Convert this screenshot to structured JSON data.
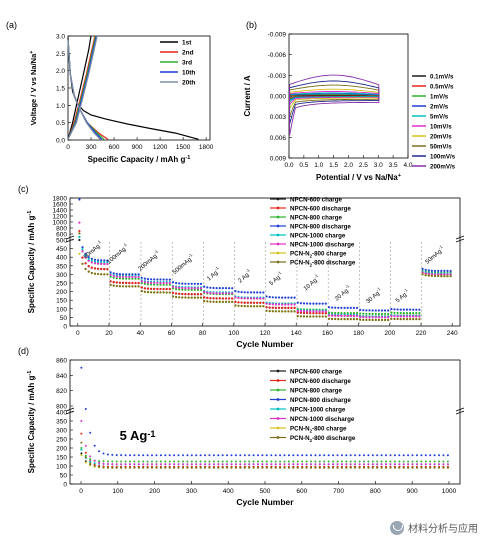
{
  "chart_data": [
    {
      "panel": "(a)",
      "type": "line",
      "xlabel": "Specific Capacity / mAh g",
      "xlabel_sup": "-1",
      "ylabel": "Voltage / V vs Na/Na",
      "ylabel_sup": "+",
      "xlim": [
        0,
        1850
      ],
      "ylim": [
        0,
        3.0
      ],
      "xticks": [
        0,
        300,
        600,
        900,
        1200,
        1500,
        1800
      ],
      "yticks": [
        0.0,
        0.5,
        1.0,
        1.5,
        2.0,
        2.5,
        3.0
      ],
      "legend_position": "top-right",
      "series": [
        {
          "name": "1st",
          "color": "#000000",
          "discharge": {
            "x": [
              0,
              30,
              60,
              120,
              200,
              300,
              500,
              800,
              1100,
              1400,
              1700
            ],
            "y": [
              2.95,
              1.9,
              1.4,
              1.05,
              0.85,
              0.72,
              0.6,
              0.45,
              0.32,
              0.2,
              0.02
            ]
          },
          "charge": {
            "x": [
              0,
              60,
              120,
              200,
              270,
              300
            ],
            "y": [
              0.02,
              0.5,
              1.1,
              1.9,
              2.6,
              3.0
            ]
          }
        },
        {
          "name": "2nd",
          "color": "#e8251f",
          "discharge": {
            "x": [
              0,
              30,
              80,
              150,
              250,
              400,
              520
            ],
            "y": [
              2.9,
              1.9,
              1.3,
              0.9,
              0.5,
              0.2,
              0.02
            ]
          },
          "charge": {
            "x": [
              0,
              80,
              150,
              240,
              310,
              350
            ],
            "y": [
              0.02,
              0.5,
              1.1,
              1.9,
              2.6,
              3.0
            ]
          }
        },
        {
          "name": "3rd",
          "color": "#2db32d",
          "discharge": {
            "x": [
              0,
              30,
              80,
              150,
              250,
              380,
              470
            ],
            "y": [
              2.9,
              1.9,
              1.3,
              0.9,
              0.5,
              0.2,
              0.02
            ]
          },
          "charge": {
            "x": [
              0,
              90,
              160,
              250,
              320,
              360
            ],
            "y": [
              0.02,
              0.5,
              1.1,
              1.9,
              2.6,
              3.0
            ]
          }
        },
        {
          "name": "10th",
          "color": "#1f3fd6",
          "discharge": {
            "x": [
              0,
              30,
              80,
              150,
              250,
              360,
              440
            ],
            "y": [
              2.9,
              1.9,
              1.3,
              0.9,
              0.5,
              0.2,
              0.02
            ]
          },
          "charge": {
            "x": [
              0,
              100,
              170,
              260,
              330,
              370
            ],
            "y": [
              0.02,
              0.5,
              1.1,
              1.9,
              2.6,
              3.0
            ]
          }
        },
        {
          "name": "20th",
          "color": "#7f8fa8",
          "discharge": {
            "x": [
              0,
              30,
              80,
              150,
              240,
              340,
              420
            ],
            "y": [
              2.9,
              1.9,
              1.3,
              0.9,
              0.5,
              0.2,
              0.02
            ]
          },
          "charge": {
            "x": [
              0,
              110,
              180,
              270,
              340,
              380
            ],
            "y": [
              0.02,
              0.5,
              1.1,
              1.9,
              2.6,
              3.0
            ]
          }
        }
      ]
    },
    {
      "panel": "(b)",
      "type": "line",
      "xlabel": "Potential / V vs Na/Na",
      "xlabel_sup": "+",
      "ylabel": "Current / A",
      "xlim": [
        0,
        4.0
      ],
      "ylim": [
        0.009,
        -0.009
      ],
      "xticks": [
        0.0,
        0.5,
        1.0,
        1.5,
        2.0,
        2.5,
        3.0,
        3.5,
        4.0
      ],
      "yticks": [
        0.009,
        0.006,
        0.003,
        0.0,
        -0.003,
        -0.006,
        -0.009
      ],
      "ytick_labels": [
        "0.009",
        "0.006",
        "0.003",
        "0.000",
        "-0.003",
        "-0.006",
        "-0.009"
      ],
      "legend_position": "right",
      "series": [
        {
          "name": "0.1mV/s",
          "color": "#1a1a1a",
          "amp": 0.15
        },
        {
          "name": "0.5mV/s",
          "color": "#e8251f",
          "amp": 0.25
        },
        {
          "name": "1mV/s",
          "color": "#2db32d",
          "amp": 0.35
        },
        {
          "name": "2mV/s",
          "color": "#1f3fd6",
          "amp": 0.5
        },
        {
          "name": "5mV/s",
          "color": "#00c0c0",
          "amp": 0.7
        },
        {
          "name": "10mV/s",
          "color": "#e030c8",
          "amp": 1.0
        },
        {
          "name": "20mV/s",
          "color": "#d4c21a",
          "amp": 1.5
        },
        {
          "name": "50mV/s",
          "color": "#7a6f1a",
          "amp": 2.4
        },
        {
          "name": "100mV/s",
          "color": "#1e2a8a",
          "amp": 3.3
        },
        {
          "name": "200mV/s",
          "color": "#8a2fa8",
          "amp": 4.6
        }
      ]
    },
    {
      "panel": "(c)",
      "type": "scatter",
      "xlabel": "Cycle Number",
      "ylabel": "Specific Capacity / mAh g",
      "ylabel_sup": "-1",
      "xlim": [
        -5,
        245
      ],
      "ylim_lower": [
        0,
        500
      ],
      "ylim_upper": [
        600,
        1800
      ],
      "xticks": [
        0,
        20,
        40,
        60,
        80,
        100,
        120,
        140,
        160,
        180,
        200,
        220,
        240
      ],
      "yticks_lower": [
        0,
        50,
        100,
        150,
        200,
        250,
        300,
        350,
        400,
        450,
        500
      ],
      "yticks_upper": [
        600,
        800,
        1000,
        1200,
        1400,
        1600,
        1800
      ],
      "rate_labels": [
        "50mAg",
        "100mAg",
        "200mAg",
        "500mAg",
        "1 Ag",
        "2 Ag",
        "5 Ag",
        "10 Ag",
        "20 Ag",
        "30 Ag",
        "5 Ag",
        "50mAg"
      ],
      "rate_sup": "-1",
      "segments": [
        [
          1,
          20
        ],
        [
          21,
          40
        ],
        [
          41,
          60
        ],
        [
          61,
          80
        ],
        [
          81,
          100
        ],
        [
          101,
          120
        ],
        [
          121,
          140
        ],
        [
          141,
          160
        ],
        [
          161,
          180
        ],
        [
          181,
          200
        ],
        [
          201,
          220
        ],
        [
          221,
          240
        ]
      ],
      "legend_position": "top-right",
      "series": [
        {
          "name": "NPCN-600 charge",
          "color": "#1a1a1a",
          "first": 500,
          "levels": [
            330,
            250,
            215,
            185,
            160,
            135,
            105,
            75,
            60,
            55,
            60,
            300
          ]
        },
        {
          "name": "NPCN-600 discharge",
          "color": "#e8251f",
          "first": 700,
          "levels": [
            330,
            250,
            215,
            185,
            160,
            135,
            105,
            75,
            60,
            55,
            60,
            300
          ]
        },
        {
          "name": "NPCN-800 charge",
          "color": "#2db32d",
          "first": 560,
          "levels": [
            360,
            275,
            240,
            210,
            185,
            160,
            130,
            95,
            75,
            70,
            75,
            310
          ]
        },
        {
          "name": "NPCN-800 discharge",
          "color": "#1f3fd6",
          "first": 1750,
          "levels": [
            380,
            300,
            270,
            245,
            220,
            195,
            165,
            130,
            105,
            90,
            95,
            320
          ]
        },
        {
          "name": "NPCN-1000 charge",
          "color": "#00c0c0",
          "first": 540,
          "levels": [
            370,
            290,
            255,
            225,
            195,
            165,
            130,
            90,
            65,
            55,
            60,
            305
          ]
        },
        {
          "name": "NPCN-1000 discharge",
          "color": "#e030c8",
          "first": 980,
          "levels": [
            360,
            285,
            250,
            220,
            190,
            160,
            125,
            85,
            60,
            50,
            55,
            300
          ]
        },
        {
          "name": "PCN-N",
          "name_sub": "2",
          "name_suffix": "-800 charge",
          "color": "#d4c21a",
          "first": 420,
          "levels": [
            300,
            230,
            195,
            165,
            140,
            115,
            85,
            55,
            40,
            35,
            40,
            290
          ]
        },
        {
          "name": "PCN-N",
          "name_sub": "2",
          "name_suffix": "-800 discharge",
          "color": "#7a6f1a",
          "first": 620,
          "levels": [
            300,
            230,
            195,
            165,
            140,
            115,
            85,
            55,
            40,
            35,
            40,
            290
          ]
        }
      ]
    },
    {
      "panel": "(d)",
      "type": "scatter",
      "annotation": "5 Ag",
      "annotation_sup": "-1",
      "xlabel": "Cycle Number",
      "ylabel": "Specific Capacity / mAh g",
      "ylabel_sup": "-1",
      "xlim": [
        -30,
        1030
      ],
      "ylim_lower": [
        0,
        400
      ],
      "ylim_upper": [
        800,
        860
      ],
      "xticks": [
        0,
        100,
        200,
        300,
        400,
        500,
        600,
        700,
        800,
        900,
        1000
      ],
      "yticks_lower": [
        0,
        50,
        100,
        150,
        200,
        250,
        300,
        350,
        400
      ],
      "yticks_upper": [
        800,
        820,
        840,
        860
      ],
      "legend_position": "top-right",
      "series": [
        {
          "name": "NPCN-600 charge",
          "color": "#1a1a1a",
          "first": 170,
          "plateau": 95
        },
        {
          "name": "NPCN-600 discharge",
          "color": "#e8251f",
          "first": 280,
          "plateau": 95
        },
        {
          "name": "NPCN-800 charge",
          "color": "#2db32d",
          "first": 200,
          "plateau": 125
        },
        {
          "name": "NPCN-800 discharge",
          "color": "#1f3fd6",
          "first": 850,
          "plateau": 160
        },
        {
          "name": "NPCN-1000 charge",
          "color": "#00c0c0",
          "first": 190,
          "plateau": 110
        },
        {
          "name": "NPCN-1000 discharge",
          "color": "#e030c8",
          "first": 350,
          "plateau": 110
        },
        {
          "name": "PCN-N",
          "name_sub": "2",
          "name_suffix": "-800 charge",
          "color": "#d4c21a",
          "first": 160,
          "plateau": 90
        },
        {
          "name": "PCN-N",
          "name_sub": "2",
          "name_suffix": "-800 discharge",
          "color": "#7a6f1a",
          "first": 230,
          "plateau": 90
        }
      ]
    }
  ],
  "watermark": {
    "text": "材料分析与应用",
    "icon": "wechat-icon"
  }
}
